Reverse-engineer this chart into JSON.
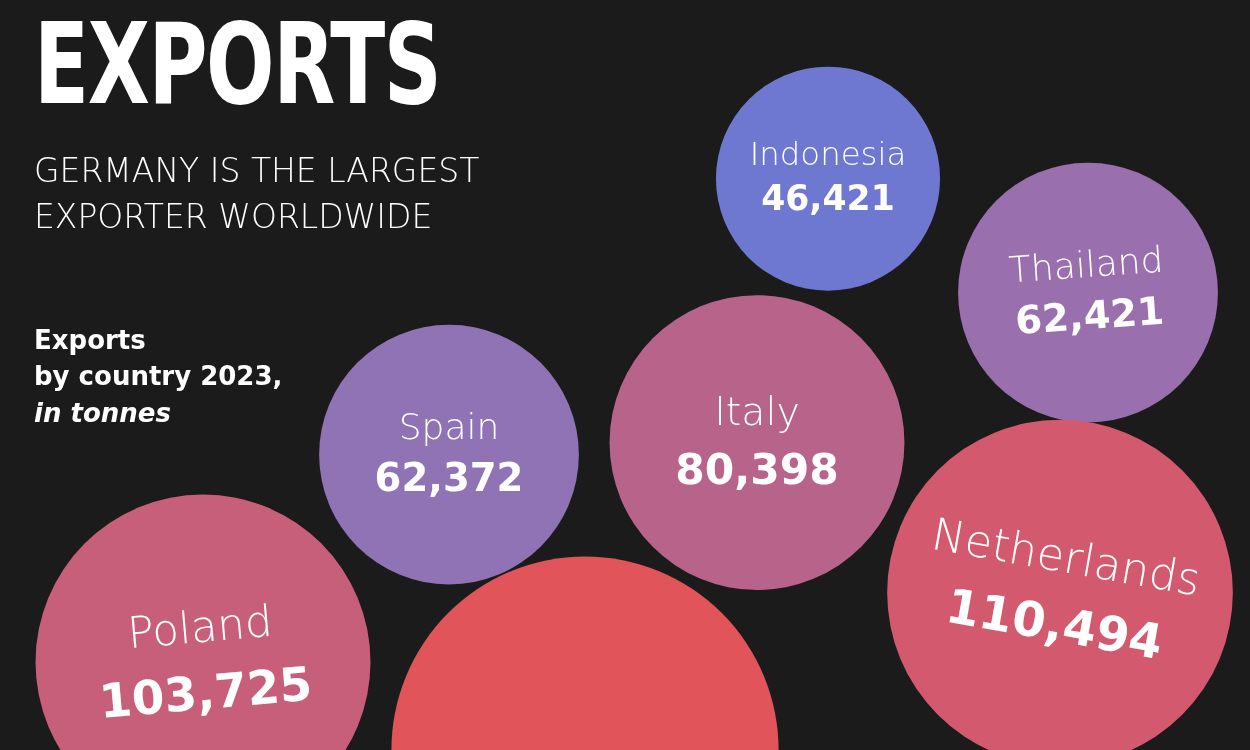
{
  "chart_data": {
    "type": "other",
    "title": "EXPORTS",
    "subtitle": "GERMANY IS THE LARGEST EXPORTER WORLDWIDE",
    "annotations": [
      "Exports",
      "by country 2023,",
      "in tonnes"
    ],
    "categories": [
      "Indonesia",
      "Thailand",
      "Spain",
      "Italy",
      "Netherlands",
      "Poland",
      null
    ],
    "values": [
      46421,
      62421,
      62372,
      80398,
      110494,
      103725,
      null
    ],
    "colors": [
      "#6f78d0",
      "#9a6fae",
      "#8f73b5",
      "#b8638a",
      "#d35a6e",
      "#c85f7a",
      "#e0545a"
    ],
    "value_labels": [
      "46,421",
      "62,421",
      "62,372",
      "80,398",
      "110,494",
      "103,725",
      null
    ]
  }
}
